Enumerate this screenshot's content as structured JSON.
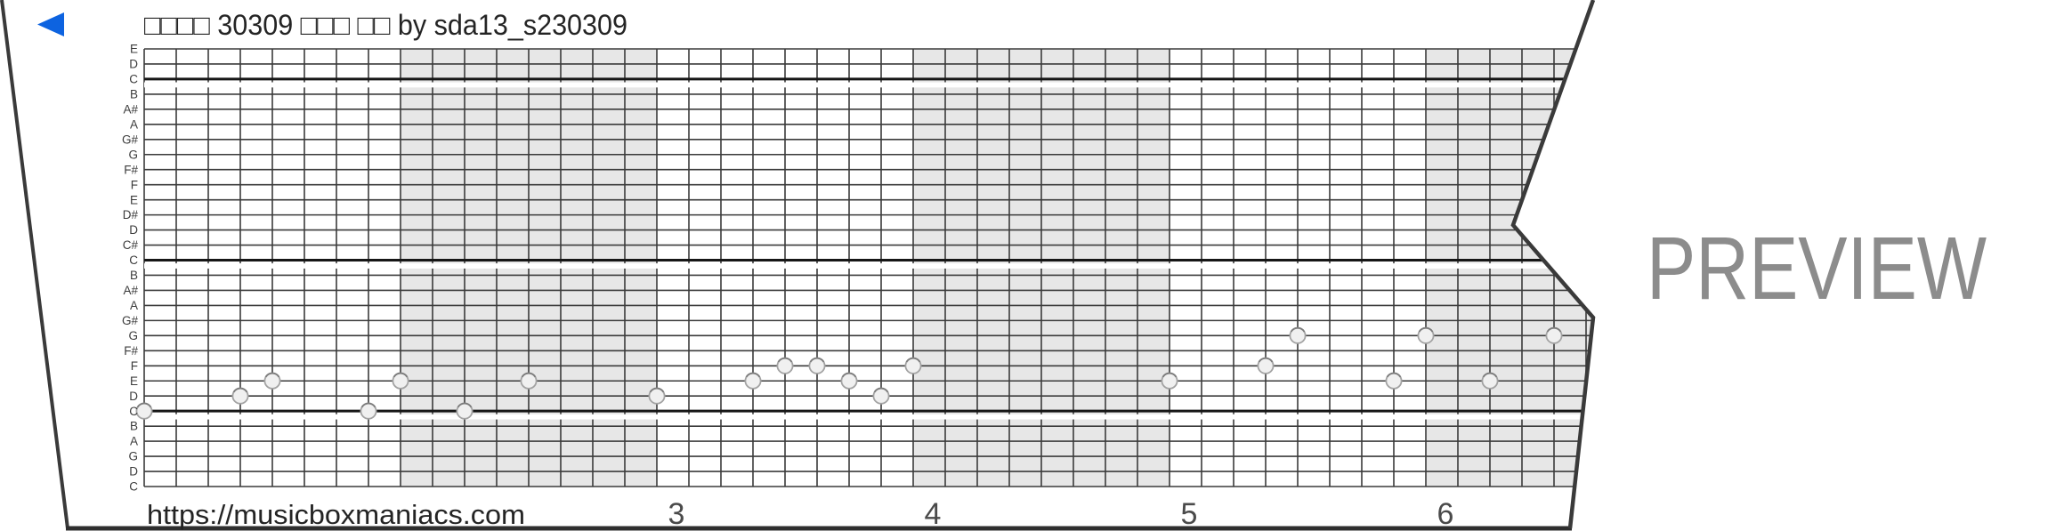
{
  "title": {
    "text": "□□□□ 30309 □□□ □□ by sda13_s230309",
    "color": "#242424"
  },
  "back_arrow": {
    "color": "#0d63e0"
  },
  "watermark": {
    "text": "PREVIEW",
    "color": "#8c8c8c"
  },
  "footer": {
    "url": "https://musicboxmaniacs.com",
    "url_color": "#242424",
    "number_color": "#4a4a4a",
    "measure_numbers": [
      {
        "measure": 3,
        "label": "3"
      },
      {
        "measure": 4,
        "label": "4"
      },
      {
        "measure": 5,
        "label": "5"
      },
      {
        "measure": 6,
        "label": "6"
      }
    ]
  },
  "strip": {
    "paper_color": "#ffffff",
    "shade_color": "#e7e7e7",
    "grid_line_color": "#3b3b3b",
    "octave_line_color": "#161616",
    "edge_color": "#3a3a3a",
    "bottom_edge_color": "#2e2e2e",
    "label_color": "#3c3c3c",
    "note_fill": "#f0f0f0",
    "note_stroke": "#a3a3a3",
    "note_rim": "#7d7d7d",
    "row_labels": [
      "E",
      "D",
      "C",
      "B",
      "A#",
      "A",
      "G#",
      "G",
      "F#",
      "F",
      "E",
      "D#",
      "D",
      "C#",
      "C",
      "B",
      "A#",
      "A",
      "G#",
      "G",
      "F#",
      "F",
      "E",
      "D",
      "C",
      "B",
      "A",
      "G",
      "D",
      "C"
    ],
    "cols_per_measure": 8,
    "shaded_measures": [
      2,
      4,
      6
    ],
    "octave_break_rows": [
      2,
      14,
      24
    ],
    "notes": [
      {
        "col": 0,
        "pitch": "C",
        "row": 24
      },
      {
        "col": 3,
        "pitch": "D",
        "row": 23
      },
      {
        "col": 4,
        "pitch": "E",
        "row": 22
      },
      {
        "col": 7,
        "pitch": "C",
        "row": 24
      },
      {
        "col": 8,
        "pitch": "E",
        "row": 22
      },
      {
        "col": 10,
        "pitch": "C",
        "row": 24
      },
      {
        "col": 12,
        "pitch": "E",
        "row": 22
      },
      {
        "col": 16,
        "pitch": "D",
        "row": 23
      },
      {
        "col": 19,
        "pitch": "E",
        "row": 22
      },
      {
        "col": 20,
        "pitch": "F",
        "row": 21
      },
      {
        "col": 21,
        "pitch": "F",
        "row": 21
      },
      {
        "col": 22,
        "pitch": "E",
        "row": 22
      },
      {
        "col": 23,
        "pitch": "D",
        "row": 23
      },
      {
        "col": 24,
        "pitch": "F",
        "row": 21
      },
      {
        "col": 32,
        "pitch": "E",
        "row": 22
      },
      {
        "col": 35,
        "pitch": "F",
        "row": 21
      },
      {
        "col": 36,
        "pitch": "G",
        "row": 19
      },
      {
        "col": 39,
        "pitch": "E",
        "row": 22
      },
      {
        "col": 40,
        "pitch": "G",
        "row": 19
      },
      {
        "col": 42,
        "pitch": "E",
        "row": 22
      },
      {
        "col": 44,
        "pitch": "G",
        "row": 19
      }
    ]
  }
}
